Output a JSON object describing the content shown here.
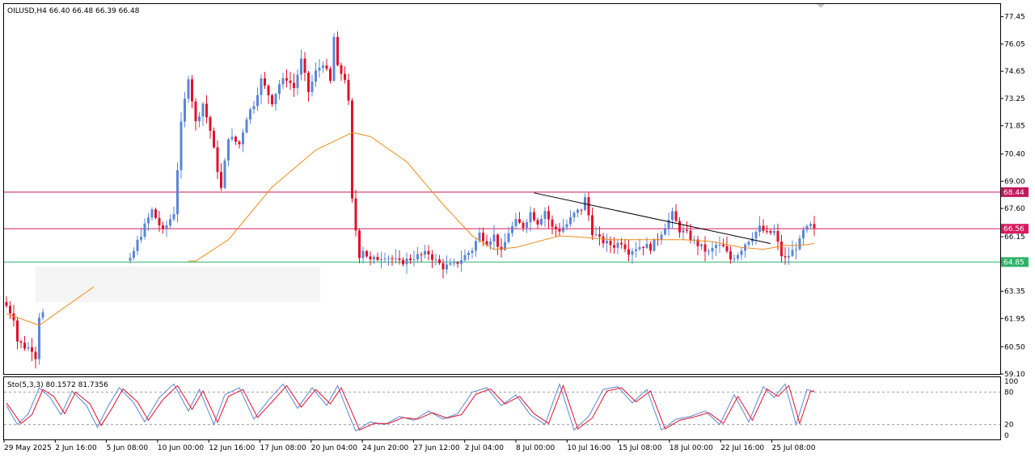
{
  "symbol_header": "OILUSD,H4  66.40 66.48 66.39 66.48",
  "indicator_header": "Sto(5,3,3) 80.1572 81.7356",
  "price_badges": [
    {
      "value": 68.44,
      "label": "68.44",
      "color": "#c2185b"
    },
    {
      "value": 66.56,
      "label": "66.56",
      "color": "#d81b60"
    },
    {
      "value": 64.85,
      "label": "64.85",
      "color": "#2fb36a"
    }
  ],
  "colors": {
    "bull": "#5b87d6",
    "bear": "#e3102b",
    "ma": "#ef8a17",
    "trendline": "#000000",
    "resistance": "#c2185b",
    "support": "#27b35a",
    "stoch_main": "#5b87d6",
    "stoch_signal": "#e3102b"
  },
  "chart_data": [
    {
      "type": "candlestick",
      "ylim": [
        59.1,
        78.1
      ],
      "y_ticks": [
        "77.45",
        "76.05",
        "74.65",
        "73.25",
        "71.85",
        "70.40",
        "69.00",
        "67.60",
        "66.15",
        "64.85",
        "63.35",
        "61.95",
        "60.50",
        "59.10"
      ],
      "y_tick_values": [
        77.45,
        76.05,
        74.65,
        73.25,
        71.85,
        70.4,
        69.0,
        67.6,
        66.15,
        64.85,
        63.35,
        61.95,
        60.5,
        59.1
      ],
      "x_labels": [
        "29 May 2025",
        "2 Jun 16:00",
        "5 Jun 08:00",
        "10 Jun 00:00",
        "12 Jun 16:00",
        "17 Jun 08:00",
        "20 Jun 04:00",
        "24 Jun 20:00",
        "27 Jun 12:00",
        "2 Jul 04:00",
        "8 Jul 00:00",
        "10 Jul 16:00",
        "15 Jul 08:00",
        "18 Jul 00:00",
        "22 Jul 16:00",
        "25 Jul 08:00"
      ],
      "horizontal_lines": [
        68.44,
        66.56,
        64.85
      ],
      "trendline": {
        "from": {
          "bar": 145,
          "price": 68.4
        },
        "to": {
          "bar": 210,
          "price": 65.8
        }
      },
      "gap": {
        "from_bar": 10,
        "to_bar": 34
      },
      "close_anchors": [
        [
          0,
          62.6
        ],
        [
          2,
          62.0
        ],
        [
          3,
          60.8
        ],
        [
          5,
          60.5
        ],
        [
          7,
          60.4
        ],
        [
          8,
          60.0
        ],
        [
          9,
          62.1
        ],
        [
          34,
          64.9
        ],
        [
          36,
          65.9
        ],
        [
          40,
          67.5
        ],
        [
          43,
          66.4
        ],
        [
          46,
          67.4
        ],
        [
          48,
          71.9
        ],
        [
          50,
          74.4
        ],
        [
          52,
          72.0
        ],
        [
          54,
          73.0
        ],
        [
          56,
          71.6
        ],
        [
          58,
          69.6
        ],
        [
          59,
          68.6
        ],
        [
          61,
          71.3
        ],
        [
          64,
          70.9
        ],
        [
          66,
          72.3
        ],
        [
          68,
          73.0
        ],
        [
          70,
          74.2
        ],
        [
          73,
          73.1
        ],
        [
          75,
          74.0
        ],
        [
          77,
          74.3
        ],
        [
          79,
          73.8
        ],
        [
          81,
          75.2
        ],
        [
          83,
          73.6
        ],
        [
          85,
          74.6
        ],
        [
          87,
          75.1
        ],
        [
          89,
          74.1
        ],
        [
          90,
          76.4
        ],
        [
          91,
          74.8
        ],
        [
          93,
          74.3
        ],
        [
          94,
          73.0
        ],
        [
          95,
          68.0
        ],
        [
          96,
          66.5
        ],
        [
          97,
          65.2
        ],
        [
          98,
          65.5
        ],
        [
          100,
          64.9
        ],
        [
          104,
          65.2
        ],
        [
          108,
          64.8
        ],
        [
          112,
          65.1
        ],
        [
          116,
          65.3
        ],
        [
          118,
          64.9
        ],
        [
          120,
          64.6
        ],
        [
          123,
          64.7
        ],
        [
          125,
          65.0
        ],
        [
          128,
          65.5
        ],
        [
          130,
          66.3
        ],
        [
          132,
          65.9
        ],
        [
          134,
          66.2
        ],
        [
          136,
          65.3
        ],
        [
          138,
          66.4
        ],
        [
          140,
          66.9
        ],
        [
          142,
          66.7
        ],
        [
          144,
          67.4
        ],
        [
          146,
          66.9
        ],
        [
          148,
          67.5
        ],
        [
          150,
          66.6
        ],
        [
          152,
          66.5
        ],
        [
          154,
          66.8
        ],
        [
          156,
          67.3
        ],
        [
          158,
          67.6
        ],
        [
          159,
          68.1
        ],
        [
          161,
          66.4
        ],
        [
          163,
          66.0
        ],
        [
          165,
          65.8
        ],
        [
          167,
          65.7
        ],
        [
          169,
          65.9
        ],
        [
          171,
          65.4
        ],
        [
          173,
          65.6
        ],
        [
          175,
          65.7
        ],
        [
          177,
          65.6
        ],
        [
          179,
          66.1
        ],
        [
          181,
          66.7
        ],
        [
          183,
          67.3
        ],
        [
          185,
          66.5
        ],
        [
          187,
          66.3
        ],
        [
          189,
          65.9
        ],
        [
          191,
          65.6
        ],
        [
          193,
          65.3
        ],
        [
          195,
          65.7
        ],
        [
          197,
          65.6
        ],
        [
          199,
          65.0
        ],
        [
          201,
          65.3
        ],
        [
          203,
          65.8
        ],
        [
          205,
          66.2
        ],
        [
          207,
          66.6
        ],
        [
          209,
          66.3
        ],
        [
          211,
          66.4
        ],
        [
          213,
          65.2
        ],
        [
          214,
          65.0
        ],
        [
          216,
          65.4
        ],
        [
          218,
          65.9
        ],
        [
          219,
          66.4
        ],
        [
          221,
          66.7
        ],
        [
          222,
          66.48
        ]
      ],
      "moving_average_anchors": [
        [
          0,
          62.2
        ],
        [
          9,
          61.6
        ],
        [
          34,
          64.9
        ],
        [
          52,
          64.9
        ],
        [
          61,
          66.0
        ],
        [
          73,
          68.7
        ],
        [
          85,
          70.6
        ],
        [
          95,
          71.5
        ],
        [
          100,
          71.3
        ],
        [
          110,
          70.0
        ],
        [
          120,
          67.8
        ],
        [
          128,
          66.2
        ],
        [
          134,
          65.5
        ],
        [
          140,
          65.6
        ],
        [
          146,
          65.9
        ],
        [
          152,
          66.2
        ],
        [
          160,
          66.1
        ],
        [
          166,
          66.0
        ],
        [
          172,
          66.0
        ],
        [
          178,
          66.0
        ],
        [
          186,
          66.0
        ],
        [
          194,
          65.9
        ],
        [
          202,
          65.6
        ],
        [
          208,
          65.5
        ],
        [
          214,
          65.7
        ],
        [
          218,
          65.7
        ],
        [
          222,
          65.8
        ]
      ]
    },
    {
      "type": "line",
      "ylim": [
        0,
        100
      ],
      "y_ticks": [
        "100",
        "80",
        "20",
        "0"
      ],
      "y_tick_values": [
        100,
        80,
        20,
        0
      ],
      "reference_levels": [
        80,
        20
      ],
      "series": [
        {
          "role": "main",
          "anchors": [
            [
              0,
              55
            ],
            [
              3,
              20
            ],
            [
              6,
              40
            ],
            [
              9,
              88
            ],
            [
              12,
              70
            ],
            [
              15,
              38
            ],
            [
              18,
              82
            ],
            [
              22,
              55
            ],
            [
              25,
              15
            ],
            [
              28,
              55
            ],
            [
              31,
              88
            ],
            [
              35,
              60
            ],
            [
              38,
              25
            ],
            [
              42,
              70
            ],
            [
              46,
              95
            ],
            [
              50,
              45
            ],
            [
              53,
              85
            ],
            [
              57,
              20
            ],
            [
              60,
              75
            ],
            [
              64,
              88
            ],
            [
              68,
              30
            ],
            [
              72,
              65
            ],
            [
              76,
              95
            ],
            [
              80,
              50
            ],
            [
              84,
              88
            ],
            [
              88,
              55
            ],
            [
              91,
              92
            ],
            [
              94,
              40
            ],
            [
              96,
              8
            ],
            [
              100,
              25
            ],
            [
              104,
              20
            ],
            [
              108,
              35
            ],
            [
              112,
              28
            ],
            [
              116,
              45
            ],
            [
              120,
              30
            ],
            [
              124,
              40
            ],
            [
              128,
              80
            ],
            [
              132,
              88
            ],
            [
              136,
              55
            ],
            [
              140,
              75
            ],
            [
              144,
              38
            ],
            [
              148,
              20
            ],
            [
              152,
              95
            ],
            [
              156,
              10
            ],
            [
              160,
              35
            ],
            [
              164,
              85
            ],
            [
              168,
              90
            ],
            [
              172,
              60
            ],
            [
              176,
              85
            ],
            [
              180,
              10
            ],
            [
              184,
              30
            ],
            [
              188,
              35
            ],
            [
              192,
              45
            ],
            [
              196,
              20
            ],
            [
              200,
              75
            ],
            [
              204,
              25
            ],
            [
              208,
              90
            ],
            [
              211,
              70
            ],
            [
              214,
              95
            ],
            [
              217,
              20
            ],
            [
              220,
              85
            ],
            [
              222,
              80
            ]
          ]
        },
        {
          "role": "signal",
          "anchors": [
            [
              0,
              60
            ],
            [
              4,
              22
            ],
            [
              7,
              38
            ],
            [
              10,
              85
            ],
            [
              13,
              72
            ],
            [
              16,
              40
            ],
            [
              19,
              80
            ],
            [
              23,
              58
            ],
            [
              26,
              18
            ],
            [
              29,
              50
            ],
            [
              32,
              86
            ],
            [
              36,
              62
            ],
            [
              39,
              28
            ],
            [
              43,
              66
            ],
            [
              47,
              92
            ],
            [
              51,
              48
            ],
            [
              54,
              82
            ],
            [
              58,
              24
            ],
            [
              61,
              72
            ],
            [
              65,
              85
            ],
            [
              69,
              33
            ],
            [
              73,
              62
            ],
            [
              77,
              92
            ],
            [
              81,
              52
            ],
            [
              85,
              85
            ],
            [
              89,
              58
            ],
            [
              92,
              88
            ],
            [
              95,
              42
            ],
            [
              97,
              10
            ],
            [
              101,
              22
            ],
            [
              105,
              22
            ],
            [
              109,
              33
            ],
            [
              113,
              30
            ],
            [
              117,
              42
            ],
            [
              121,
              32
            ],
            [
              125,
              38
            ],
            [
              129,
              76
            ],
            [
              133,
              86
            ],
            [
              137,
              58
            ],
            [
              141,
              72
            ],
            [
              145,
              40
            ],
            [
              149,
              22
            ],
            [
              153,
              92
            ],
            [
              157,
              12
            ],
            [
              161,
              32
            ],
            [
              165,
              82
            ],
            [
              169,
              88
            ],
            [
              173,
              62
            ],
            [
              177,
              82
            ],
            [
              181,
              12
            ],
            [
              185,
              28
            ],
            [
              189,
              34
            ],
            [
              193,
              42
            ],
            [
              197,
              22
            ],
            [
              201,
              72
            ],
            [
              205,
              28
            ],
            [
              209,
              86
            ],
            [
              212,
              72
            ],
            [
              215,
              92
            ],
            [
              218,
              22
            ],
            [
              221,
              82
            ],
            [
              222,
              82
            ]
          ]
        }
      ]
    }
  ]
}
